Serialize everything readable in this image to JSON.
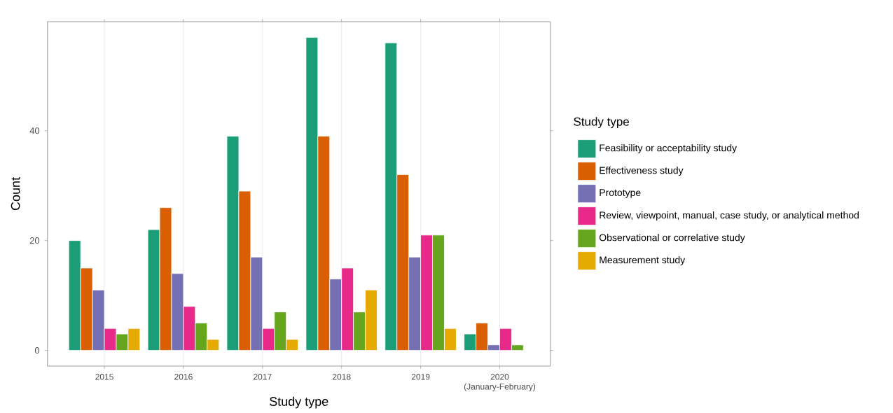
{
  "chart_data": {
    "type": "bar",
    "xlabel": "Study type",
    "ylabel": "Count",
    "legend_title": "Study type",
    "categories": [
      "2015",
      "2016",
      "2017",
      "2018",
      "2019",
      "2020 (January-February)"
    ],
    "series": [
      {
        "name": "Feasibility or acceptability study",
        "color": "#1b9e77",
        "values": [
          20,
          22,
          39,
          57,
          56,
          3
        ]
      },
      {
        "name": "Effectiveness study",
        "color": "#d95f02",
        "values": [
          15,
          26,
          29,
          39,
          32,
          5
        ]
      },
      {
        "name": "Prototype",
        "color": "#7570b3",
        "values": [
          11,
          14,
          17,
          13,
          17,
          1
        ]
      },
      {
        "name": "Review, viewpoint, manual, case study, or analytical method",
        "color": "#e7298a",
        "values": [
          4,
          8,
          4,
          15,
          21,
          4
        ]
      },
      {
        "name": "Observational or correlative study",
        "color": "#66a61e",
        "values": [
          3,
          5,
          7,
          7,
          21,
          1
        ]
      },
      {
        "name": "Measurement study",
        "color": "#e6ab02",
        "values": [
          4,
          2,
          2,
          11,
          4,
          null
        ]
      }
    ],
    "ylim": [
      -2.85,
      59.85
    ],
    "yticks": [
      0,
      20,
      40
    ],
    "grid": "x",
    "legend": "right"
  }
}
